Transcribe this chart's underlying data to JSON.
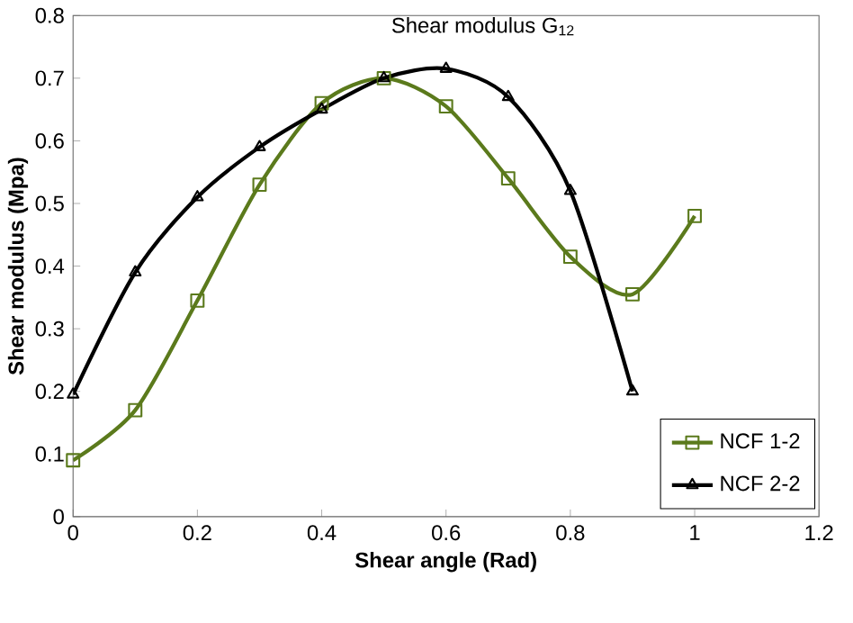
{
  "chart_data": {
    "type": "line",
    "title": "Shear modulus G$_{12}$",
    "xlabel": "Shear angle (Rad)",
    "ylabel": "Shear modulus (Mpa)",
    "xlim": [
      0,
      1.2
    ],
    "xticks": [
      0,
      0.2,
      0.4,
      0.6,
      0.8,
      1,
      1.2
    ],
    "ylim": [
      0,
      0.8
    ],
    "yticks": [
      0,
      0.1,
      0.2,
      0.3,
      0.4,
      0.5,
      0.6,
      0.7,
      0.8
    ],
    "grid": false,
    "legend": "bottom right",
    "line_style": "solid",
    "series": [
      {
        "name": "NCF 1-2",
        "color": "#5b7a1c",
        "marker": "square",
        "x": [
          0,
          0.1,
          0.2,
          0.3,
          0.4,
          0.5,
          0.6,
          0.7,
          0.8,
          0.9,
          1.0
        ],
        "values": [
          0.09,
          0.17,
          0.345,
          0.53,
          0.66,
          0.7,
          0.655,
          0.54,
          0.415,
          0.355,
          0.48
        ]
      },
      {
        "name": "NCF 2-2",
        "color": "#000000",
        "marker": "triangle",
        "x": [
          0,
          0.1,
          0.2,
          0.3,
          0.4,
          0.5,
          0.6,
          0.7,
          0.8,
          0.9
        ],
        "values": [
          0.195,
          0.39,
          0.51,
          0.59,
          0.65,
          0.7,
          0.715,
          0.67,
          0.52,
          0.2
        ]
      }
    ]
  }
}
